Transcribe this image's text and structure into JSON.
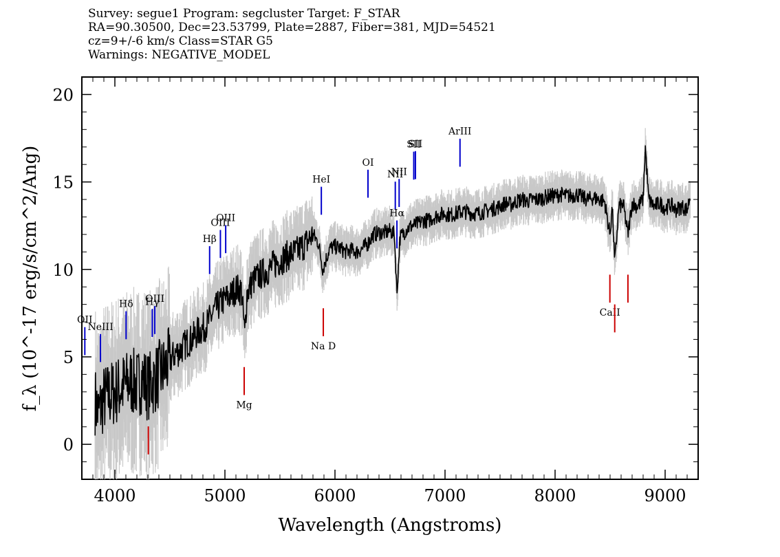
{
  "header": {
    "line1": "Survey: segue1 Program: segcluster Target: F_STAR",
    "line2": "RA=90.30500, Dec=23.53799, Plate=2887, Fiber=381, MJD=54521",
    "line3": "cz=9+/-6 km/s Class=STAR G5",
    "line4": "Warnings: NEGATIVE_MODEL"
  },
  "chart_data": {
    "type": "line",
    "title": "",
    "xlabel": "Wavelength (Angstroms)",
    "ylabel": "f_λ (10^-17 erg/s/cm^2/Ang)",
    "xlim": [
      3700,
      9300
    ],
    "ylim": [
      -2,
      21
    ],
    "x_ticks": [
      4000,
      5000,
      6000,
      7000,
      8000,
      9000
    ],
    "y_ticks": [
      0,
      5,
      10,
      15,
      20
    ],
    "grid": false,
    "series": [
      {
        "color": "#000000",
        "points": [
          [
            3820,
            2.5
          ],
          [
            3850,
            1.8
          ],
          [
            3900,
            2.6
          ],
          [
            3950,
            2.8
          ],
          [
            4000,
            3.0
          ],
          [
            4050,
            3.2
          ],
          [
            4100,
            3.4
          ],
          [
            4150,
            3.6
          ],
          [
            4200,
            3.4
          ],
          [
            4250,
            3.8
          ],
          [
            4300,
            3.3
          ],
          [
            4350,
            3.6
          ],
          [
            4400,
            4.0
          ],
          [
            4450,
            4.3
          ],
          [
            4500,
            4.8
          ],
          [
            4550,
            5.2
          ],
          [
            4600,
            5.4
          ],
          [
            4650,
            5.8
          ],
          [
            4700,
            6.0
          ],
          [
            4750,
            6.4
          ],
          [
            4800,
            6.6
          ],
          [
            4850,
            7.0
          ],
          [
            4900,
            7.6
          ],
          [
            4950,
            8.0
          ],
          [
            5000,
            8.3
          ],
          [
            5050,
            8.5
          ],
          [
            5100,
            8.9
          ],
          [
            5150,
            8.8
          ],
          [
            5180,
            6.3
          ],
          [
            5200,
            8.6
          ],
          [
            5250,
            9.3
          ],
          [
            5300,
            9.6
          ],
          [
            5350,
            9.8
          ],
          [
            5400,
            10.0
          ],
          [
            5450,
            10.3
          ],
          [
            5500,
            10.5
          ],
          [
            5550,
            10.7
          ],
          [
            5600,
            10.9
          ],
          [
            5650,
            11.0
          ],
          [
            5700,
            11.3
          ],
          [
            5750,
            11.6
          ],
          [
            5800,
            12.0
          ],
          [
            5850,
            11.5
          ],
          [
            5890,
            10.0
          ],
          [
            5950,
            11.2
          ],
          [
            6000,
            11.3
          ],
          [
            6050,
            11.2
          ],
          [
            6100,
            11.0
          ],
          [
            6150,
            11.1
          ],
          [
            6200,
            11.0
          ],
          [
            6250,
            11.2
          ],
          [
            6300,
            11.5
          ],
          [
            6350,
            12.0
          ],
          [
            6400,
            12.1
          ],
          [
            6450,
            12.1
          ],
          [
            6500,
            12.2
          ],
          [
            6540,
            12.0
          ],
          [
            6563,
            8.6
          ],
          [
            6590,
            11.8
          ],
          [
            6650,
            12.3
          ],
          [
            6700,
            12.5
          ],
          [
            6750,
            12.6
          ],
          [
            6800,
            12.8
          ],
          [
            6850,
            12.8
          ],
          [
            6900,
            13.0
          ],
          [
            6950,
            13.1
          ],
          [
            7000,
            13.2
          ],
          [
            7050,
            13.1
          ],
          [
            7100,
            13.2
          ],
          [
            7150,
            13.3
          ],
          [
            7200,
            13.3
          ],
          [
            7250,
            13.2
          ],
          [
            7300,
            13.2
          ],
          [
            7350,
            13.3
          ],
          [
            7400,
            13.4
          ],
          [
            7450,
            13.5
          ],
          [
            7500,
            13.6
          ],
          [
            7550,
            13.8
          ],
          [
            7600,
            13.7
          ],
          [
            7650,
            13.9
          ],
          [
            7700,
            14.0
          ],
          [
            7750,
            13.9
          ],
          [
            7800,
            14.0
          ],
          [
            7850,
            14.0
          ],
          [
            7900,
            14.1
          ],
          [
            7950,
            14.2
          ],
          [
            8000,
            14.2
          ],
          [
            8050,
            14.3
          ],
          [
            8100,
            14.2
          ],
          [
            8150,
            14.2
          ],
          [
            8200,
            14.3
          ],
          [
            8250,
            14.1
          ],
          [
            8300,
            14.0
          ],
          [
            8350,
            14.1
          ],
          [
            8400,
            14.0
          ],
          [
            8450,
            13.9
          ],
          [
            8498,
            12.0
          ],
          [
            8520,
            13.6
          ],
          [
            8542,
            10.3
          ],
          [
            8580,
            13.6
          ],
          [
            8620,
            13.7
          ],
          [
            8662,
            12.0
          ],
          [
            8700,
            13.8
          ],
          [
            8750,
            13.6
          ],
          [
            8800,
            14.0
          ],
          [
            8820,
            17.0
          ],
          [
            8850,
            14.0
          ],
          [
            8900,
            13.6
          ],
          [
            8950,
            13.8
          ],
          [
            9000,
            13.5
          ],
          [
            9050,
            13.7
          ],
          [
            9100,
            13.4
          ],
          [
            9150,
            13.6
          ],
          [
            9200,
            13.4
          ],
          [
            9230,
            14.3
          ]
        ]
      }
    ],
    "emission_lines": [
      {
        "name": "OII",
        "x": 3727,
        "color": "#0000cc"
      },
      {
        "name": "NeIII",
        "x": 3869,
        "color": "#0000cc"
      },
      {
        "name": "Hδ",
        "x": 4102,
        "color": "#0000cc"
      },
      {
        "name": "Hγ",
        "x": 4340,
        "color": "#0000cc"
      },
      {
        "name": "OIII",
        "x": 4363,
        "color": "#0000cc"
      },
      {
        "name": "Hβ",
        "x": 4861,
        "color": "#0000cc"
      },
      {
        "name": "OIII",
        "x": 4959,
        "color": "#0000cc"
      },
      {
        "name": "OIII",
        "x": 5007,
        "color": "#0000cc"
      },
      {
        "name": "HeI",
        "x": 5876,
        "color": "#0000cc"
      },
      {
        "name": "OI",
        "x": 6300,
        "color": "#0000cc"
      },
      {
        "name": "NII",
        "x": 6548,
        "color": "#0000cc"
      },
      {
        "name": "Hα",
        "x": 6563,
        "color": "#0000cc"
      },
      {
        "name": "NII",
        "x": 6583,
        "color": "#0000cc"
      },
      {
        "name": "SII",
        "x": 6716,
        "color": "#0000cc"
      },
      {
        "name": "SII",
        "x": 6731,
        "color": "#0000cc"
      },
      {
        "name": "ArIII",
        "x": 7136,
        "color": "#0000cc"
      }
    ],
    "absorption_lines": [
      {
        "name": "",
        "x": 4304,
        "color": "#cc0000"
      },
      {
        "name": "Mg",
        "x": 5175,
        "color": "#cc0000"
      },
      {
        "name": "Na D",
        "x": 5894,
        "color": "#cc0000"
      },
      {
        "name": "CaII",
        "x": 8498,
        "color": "#cc0000"
      },
      {
        "name": "",
        "x": 8542,
        "color": "#cc0000"
      },
      {
        "name": "",
        "x": 8662,
        "color": "#cc0000"
      }
    ]
  }
}
